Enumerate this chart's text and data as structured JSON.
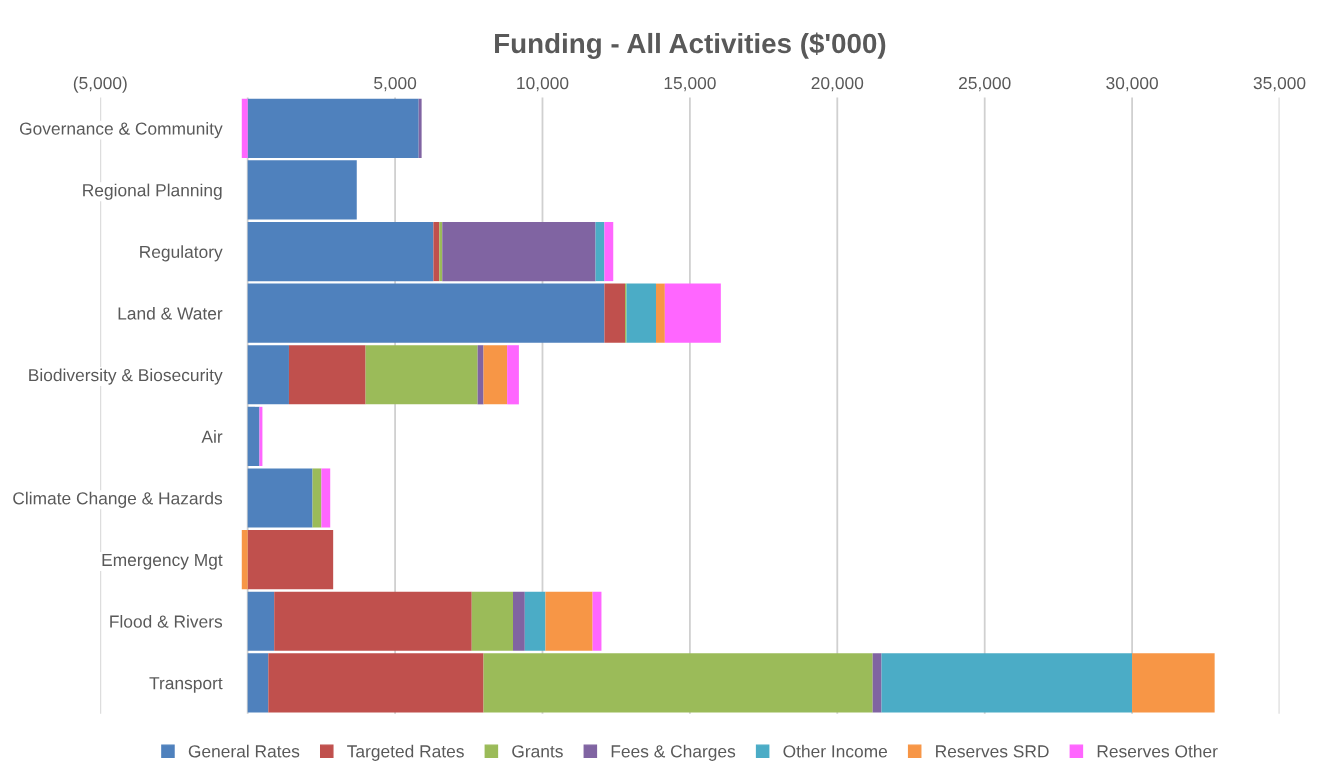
{
  "chart_data": {
    "type": "bar",
    "orientation": "horizontal",
    "stacked": true,
    "title": "Funding - All Activities ($'000)",
    "categories": [
      "Governance & Community",
      "Regional Planning",
      "Regulatory",
      "Land & Water",
      "Biodiversity & Biosecurity",
      "Air",
      "Climate Change & Hazards",
      "Emergency Mgt",
      "Flood & Rivers",
      "Transport"
    ],
    "series": [
      {
        "name": "General Rates",
        "color": "#4f81bd",
        "values": [
          5800,
          3700,
          6300,
          12100,
          1400,
          400,
          2200,
          0,
          900,
          700
        ]
      },
      {
        "name": "Targeted Rates",
        "color": "#c0504d",
        "values": [
          0,
          0,
          200,
          700,
          2600,
          0,
          0,
          2900,
          6700,
          7300
        ]
      },
      {
        "name": "Grants",
        "color": "#9bbb59",
        "values": [
          0,
          0,
          100,
          50,
          3800,
          0,
          300,
          0,
          1400,
          13200
        ]
      },
      {
        "name": "Fees & Charges",
        "color": "#8064a2",
        "values": [
          100,
          0,
          5200,
          0,
          200,
          0,
          0,
          0,
          400,
          300
        ]
      },
      {
        "name": "Other Income",
        "color": "#4bacc6",
        "values": [
          0,
          0,
          300,
          1000,
          0,
          0,
          0,
          0,
          700,
          8500
        ]
      },
      {
        "name": "Reserves SRD",
        "color": "#f79646",
        "values": [
          0,
          0,
          0,
          300,
          800,
          0,
          0,
          -200,
          1600,
          2800
        ]
      },
      {
        "name": "Reserves Other",
        "color": "#ff66ff",
        "values": [
          -200,
          0,
          300,
          1900,
          400,
          100,
          300,
          0,
          300,
          0
        ]
      }
    ],
    "xlim": [
      -5000,
      35000
    ],
    "xticks": [
      {
        "value": -5000,
        "label": "(5,000)"
      },
      {
        "value": 0,
        "label": null
      },
      {
        "value": 5000,
        "label": "5,000"
      },
      {
        "value": 10000,
        "label": "10,000"
      },
      {
        "value": 15000,
        "label": "15,000"
      },
      {
        "value": 20000,
        "label": "20,000"
      },
      {
        "value": 25000,
        "label": "25,000"
      },
      {
        "value": 30000,
        "label": "30,000"
      },
      {
        "value": 35000,
        "label": "35,000"
      }
    ],
    "grid": "x",
    "legend": "bottom"
  }
}
